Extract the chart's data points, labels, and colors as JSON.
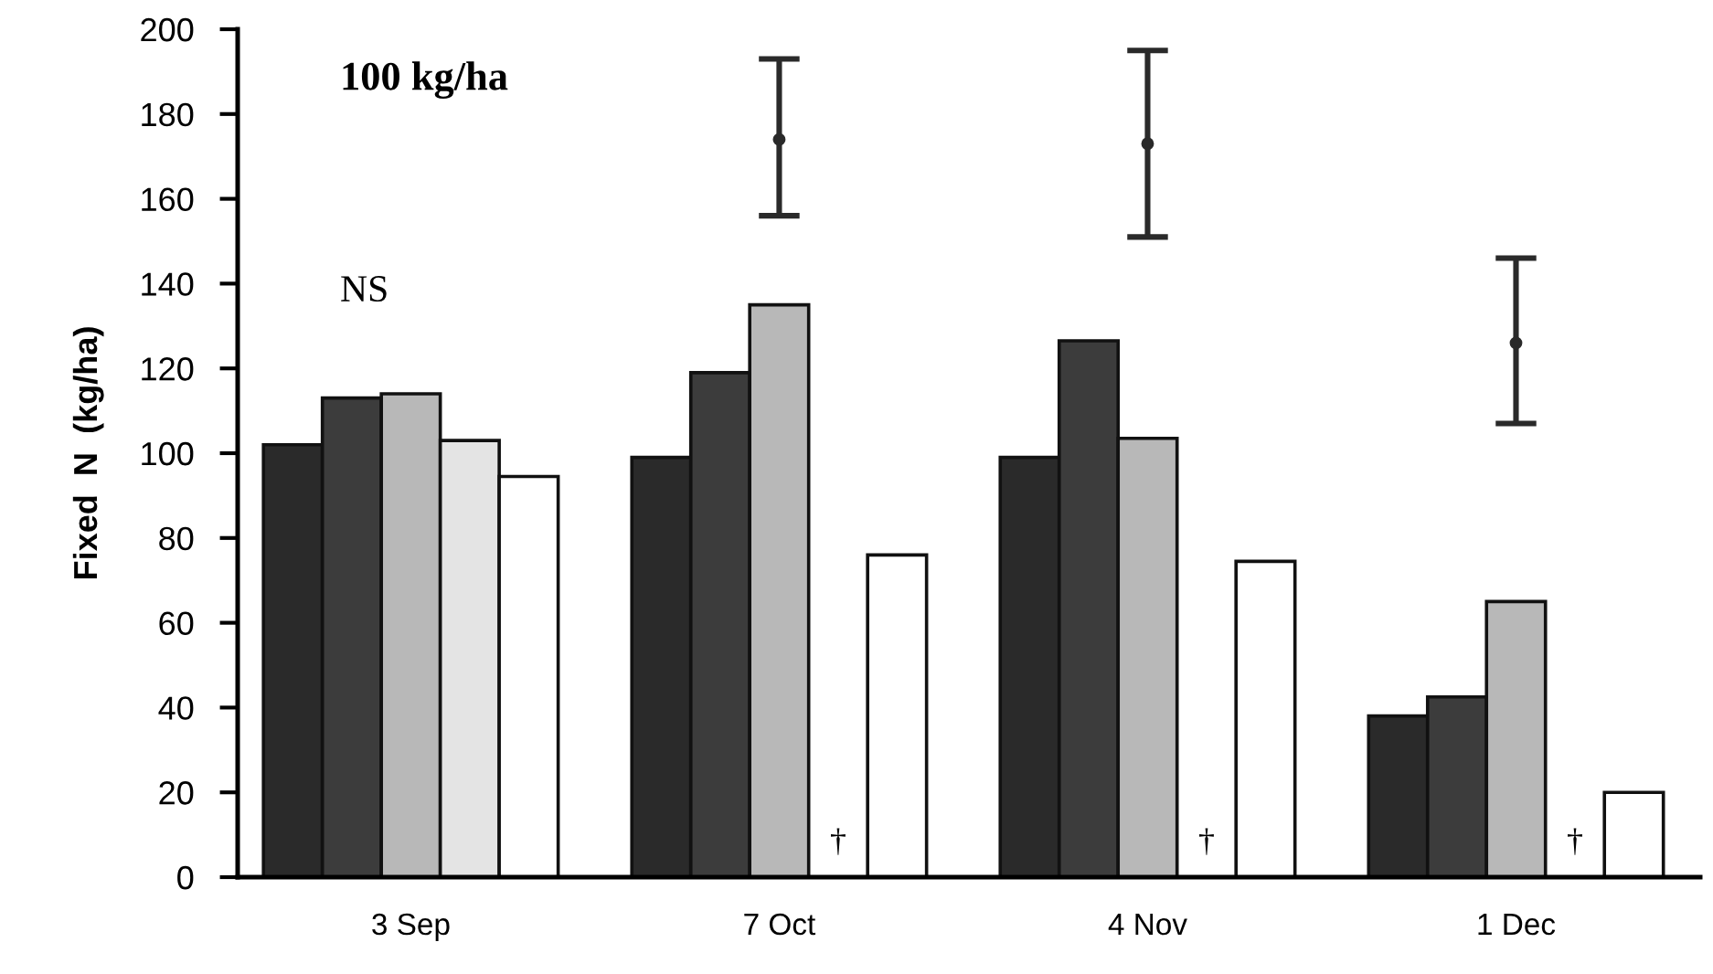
{
  "chart_data": {
    "type": "bar",
    "ylabel": "Fixed  N  (kg/ha)",
    "categories": [
      "3 Sep",
      "7 Oct",
      "4 Nov",
      "1 Dec"
    ],
    "series": [
      {
        "color": "#2a2a2a",
        "values": [
          102,
          99,
          99,
          38
        ]
      },
      {
        "color": "#3c3c3c",
        "values": [
          113,
          119,
          126.5,
          42.5
        ]
      },
      {
        "color": "#b8b8b8",
        "values": [
          114,
          135,
          103.5,
          65
        ]
      },
      {
        "color": "#e4e4e4",
        "values": [
          103,
          null,
          null,
          null
        ]
      },
      {
        "color": "#ffffff",
        "values": [
          94.5,
          76,
          74.5,
          20
        ]
      },
      {
        "type": "scatter",
        "marker": "circle",
        "color": "#2a2a2a",
        "x": [
          "7 Oct",
          "4 Nov",
          "1 Dec"
        ],
        "values": [
          174,
          173,
          126
        ],
        "errors": [
          [
            156,
            193
          ],
          [
            151,
            195
          ],
          [
            107,
            146
          ]
        ]
      }
    ],
    "ylim": [
      0,
      200
    ],
    "yticks": [
      0,
      20,
      40,
      60,
      80,
      100,
      120,
      140,
      160,
      180,
      200
    ],
    "grid": false,
    "legend": false,
    "annotations": [
      "100 kg/ha",
      "NS",
      "†",
      "†",
      "†"
    ]
  }
}
